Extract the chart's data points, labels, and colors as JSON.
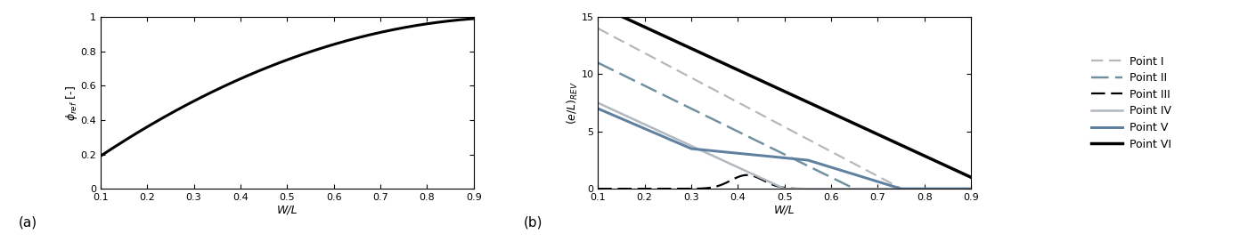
{
  "plot_a": {
    "ylabel": "$\\phi_{ref}$ [-]",
    "xlabel": "W/L",
    "xlim": [
      0.1,
      0.9
    ],
    "ylim": [
      0,
      1
    ],
    "yticks": [
      0,
      0.2,
      0.4,
      0.6,
      0.8,
      1
    ],
    "xticks": [
      0.1,
      0.2,
      0.3,
      0.4,
      0.5,
      0.6,
      0.7,
      0.8,
      0.9
    ],
    "label_a": "(a)"
  },
  "plot_b": {
    "ylabel": "$(e/L)_{REV}$",
    "xlabel": "W/L",
    "xlim": [
      0.1,
      0.9
    ],
    "ylim": [
      0,
      15
    ],
    "yticks": [
      0,
      5,
      10,
      15
    ],
    "xticks": [
      0.1,
      0.2,
      0.3,
      0.4,
      0.5,
      0.6,
      0.7,
      0.8,
      0.9
    ],
    "label_b": "(b)"
  },
  "legend": {
    "entries": [
      "Point I",
      "Point II",
      "Point III",
      "Point IV",
      "Point V",
      "Point VI"
    ]
  },
  "colors": {
    "point_I": "#b8b8b8",
    "point_II": "#7090a0",
    "point_III": "#000000",
    "point_IV": "#b0b8c0",
    "point_V": "#6080a0",
    "point_VI": "#000000"
  },
  "figsize": [
    14.1,
    2.72
  ],
  "dpi": 100
}
